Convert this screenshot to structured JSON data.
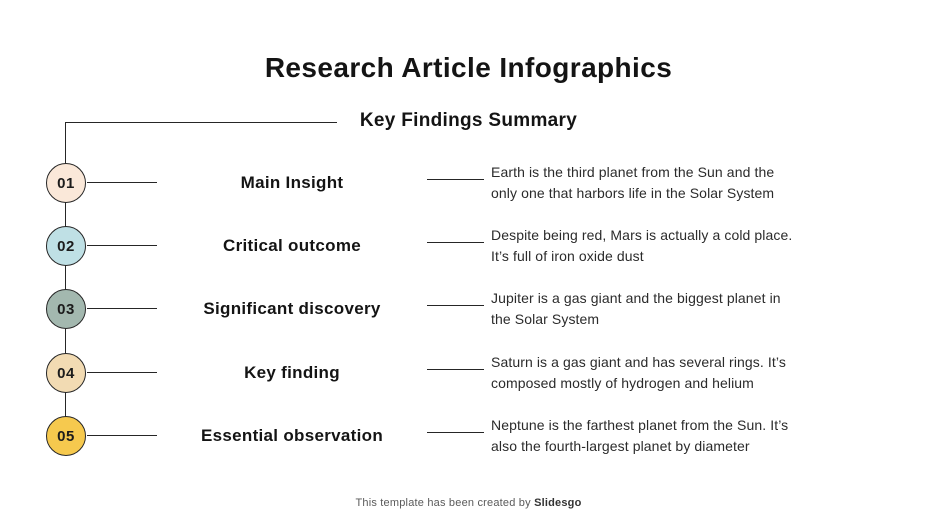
{
  "slide": {
    "title": "Research Article Infographics",
    "subtitle": "Key Findings Summary",
    "footer_text": "This template has been created by ",
    "footer_brand": "Slidesgo"
  },
  "colors": {
    "background": "#FFFFFF",
    "line": "#262626",
    "heading_text": "#141414",
    "body_text": "#2B2B2B",
    "footer_text": "#5A5A5A"
  },
  "rows": [
    {
      "number": "01",
      "circle_color": "#FAE8D9",
      "title": "Main Insight",
      "description": [
        "Earth is the third planet from the Sun and the",
        "only one that harbors life in the Solar System"
      ]
    },
    {
      "number": "02",
      "circle_color": "#BFE0E5",
      "title": "Critical outcome",
      "description": [
        "Despite being red, Mars is actually a cold place.",
        "It’s full of iron oxide dust"
      ]
    },
    {
      "number": "03",
      "circle_color": "#A3B8AF",
      "title": "Significant discovery",
      "description": [
        "Jupiter is a gas giant and the biggest planet in",
        "the Solar System"
      ]
    },
    {
      "number": "04",
      "circle_color": "#F2DBB3",
      "title": "Key finding",
      "description": [
        "Saturn is a gas giant and has several rings. It’s",
        "composed mostly of hydrogen and helium"
      ]
    },
    {
      "number": "05",
      "circle_color": "#F6C94E",
      "title": "Essential observation",
      "description": [
        "Neptune is the farthest planet from the Sun. It’s",
        "also the fourth-largest planet by diameter"
      ]
    }
  ]
}
